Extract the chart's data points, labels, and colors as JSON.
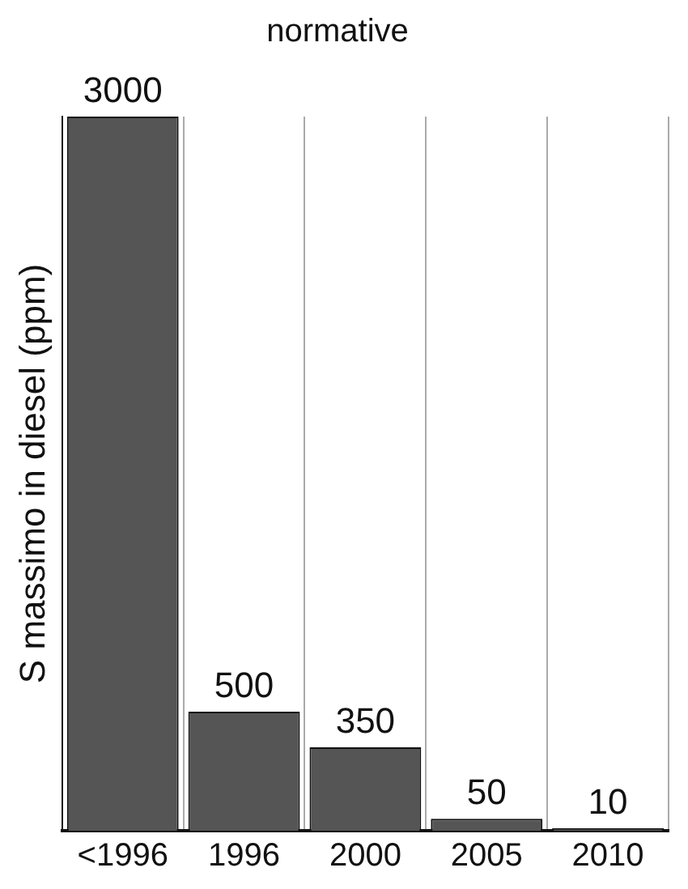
{
  "chart_data": {
    "type": "bar",
    "title": "normative",
    "ylabel": "S massimo in diesel (ppm)",
    "categories": [
      "<1996",
      "1996",
      "2000",
      "2005",
      "2010"
    ],
    "values": [
      3000,
      500,
      350,
      50,
      10
    ],
    "color": "#555555",
    "data_labels": true,
    "grid": "x",
    "legend": false,
    "tick_labels": "x"
  }
}
